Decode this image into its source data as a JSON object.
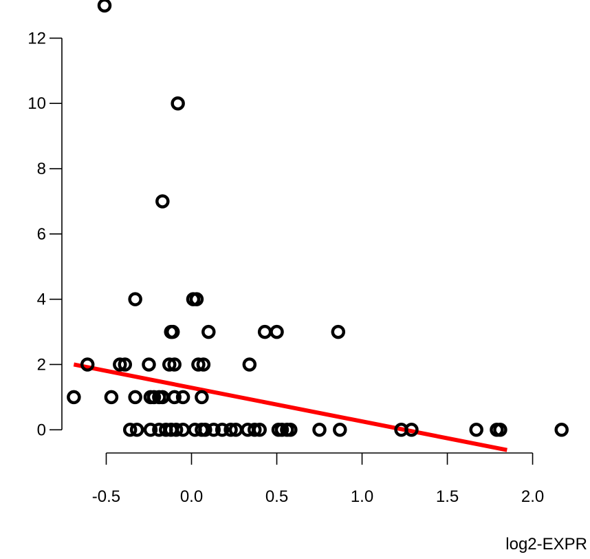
{
  "chart_data": {
    "type": "scatter",
    "title": "",
    "xlabel": "log2-EXPR",
    "ylabel": "",
    "xlim": [
      -0.76,
      2.28
    ],
    "ylim": [
      -0.5,
      13.0
    ],
    "x_ticks": [
      -0.5,
      0.0,
      0.5,
      1.0,
      1.5,
      2.0
    ],
    "x_tick_labels": [
      "-0.5",
      "0.0",
      "0.5",
      "1.0",
      "1.5",
      "2.0"
    ],
    "y_ticks": [
      0,
      2,
      4,
      6,
      8,
      10,
      12
    ],
    "y_tick_labels": [
      "0",
      "2",
      "4",
      "6",
      "8",
      "10",
      "12"
    ],
    "grid": false,
    "legend": "none",
    "colors": {
      "points": "#000000",
      "fit_line": "#ff0000"
    },
    "points": [
      [
        -0.51,
        13
      ],
      [
        -0.08,
        10
      ],
      [
        -0.17,
        7
      ],
      [
        -0.33,
        4
      ],
      [
        0.01,
        4
      ],
      [
        0.03,
        4
      ],
      [
        -0.12,
        3
      ],
      [
        -0.11,
        3
      ],
      [
        0.1,
        3
      ],
      [
        0.43,
        3
      ],
      [
        0.5,
        3
      ],
      [
        0.86,
        3
      ],
      [
        -0.61,
        2
      ],
      [
        -0.42,
        2
      ],
      [
        -0.39,
        2
      ],
      [
        -0.25,
        2
      ],
      [
        -0.13,
        2
      ],
      [
        -0.1,
        2
      ],
      [
        0.04,
        2
      ],
      [
        0.07,
        2
      ],
      [
        0.34,
        2
      ],
      [
        -0.69,
        1
      ],
      [
        -0.47,
        1
      ],
      [
        -0.33,
        1
      ],
      [
        -0.24,
        1
      ],
      [
        -0.22,
        1
      ],
      [
        -0.19,
        1
      ],
      [
        -0.17,
        1
      ],
      [
        -0.1,
        1
      ],
      [
        -0.05,
        1
      ],
      [
        0.06,
        1
      ],
      [
        -0.36,
        0
      ],
      [
        -0.32,
        0
      ],
      [
        -0.24,
        0
      ],
      [
        -0.19,
        0
      ],
      [
        -0.15,
        0
      ],
      [
        -0.12,
        0
      ],
      [
        -0.09,
        0
      ],
      [
        -0.05,
        0
      ],
      [
        0.02,
        0
      ],
      [
        0.06,
        0
      ],
      [
        0.08,
        0
      ],
      [
        0.13,
        0
      ],
      [
        0.18,
        0
      ],
      [
        0.23,
        0
      ],
      [
        0.26,
        0
      ],
      [
        0.33,
        0
      ],
      [
        0.37,
        0
      ],
      [
        0.4,
        0
      ],
      [
        0.51,
        0
      ],
      [
        0.53,
        0
      ],
      [
        0.56,
        0
      ],
      [
        0.58,
        0
      ],
      [
        0.75,
        0
      ],
      [
        0.87,
        0
      ],
      [
        1.23,
        0
      ],
      [
        1.29,
        0
      ],
      [
        1.67,
        0
      ],
      [
        1.79,
        0
      ],
      [
        1.81,
        0
      ],
      [
        2.17,
        0
      ]
    ],
    "fit_line": {
      "x": [
        -0.69,
        1.85
      ],
      "y": [
        2.0,
        -0.62
      ]
    }
  }
}
